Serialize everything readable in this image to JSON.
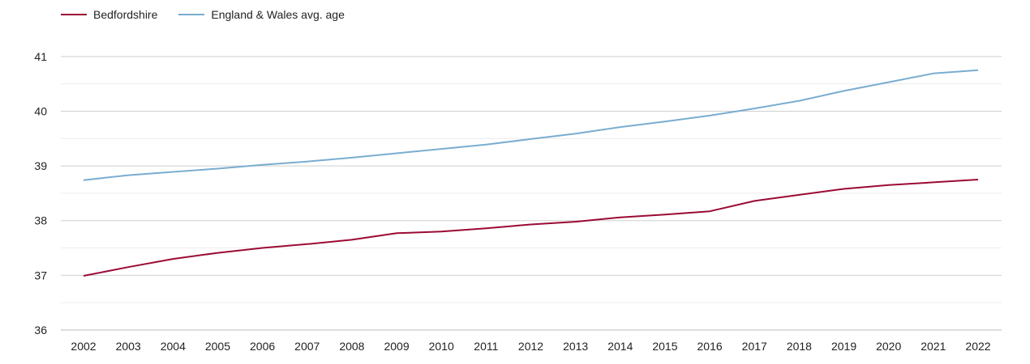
{
  "chart_data": {
    "type": "line",
    "x": [
      "2002",
      "2003",
      "2004",
      "2005",
      "2006",
      "2007",
      "2008",
      "2009",
      "2010",
      "2011",
      "2012",
      "2013",
      "2014",
      "2015",
      "2016",
      "2017",
      "2018",
      "2019",
      "2020",
      "2021",
      "2022"
    ],
    "series": [
      {
        "name": "Bedfordshire",
        "color": "#9b0a34",
        "values": [
          36.99,
          37.15,
          37.3,
          37.41,
          37.5,
          37.57,
          37.65,
          37.77,
          37.8,
          37.86,
          37.93,
          37.98,
          38.06,
          38.11,
          38.17,
          38.36,
          38.47,
          38.58,
          38.65,
          38.7,
          38.75
        ]
      },
      {
        "name": "England & Wales avg. age",
        "color": "#7aadd0",
        "values": [
          38.74,
          38.83,
          38.89,
          38.95,
          39.02,
          39.08,
          39.15,
          39.23,
          39.31,
          39.39,
          39.49,
          39.59,
          39.71,
          39.81,
          39.92,
          40.05,
          40.19,
          40.37,
          40.53,
          40.69,
          40.75
        ]
      }
    ],
    "yticks": [
      36,
      37,
      38,
      39,
      40,
      41
    ],
    "ylim": [
      36,
      41.5
    ],
    "grid": true,
    "legend": "top-left"
  }
}
